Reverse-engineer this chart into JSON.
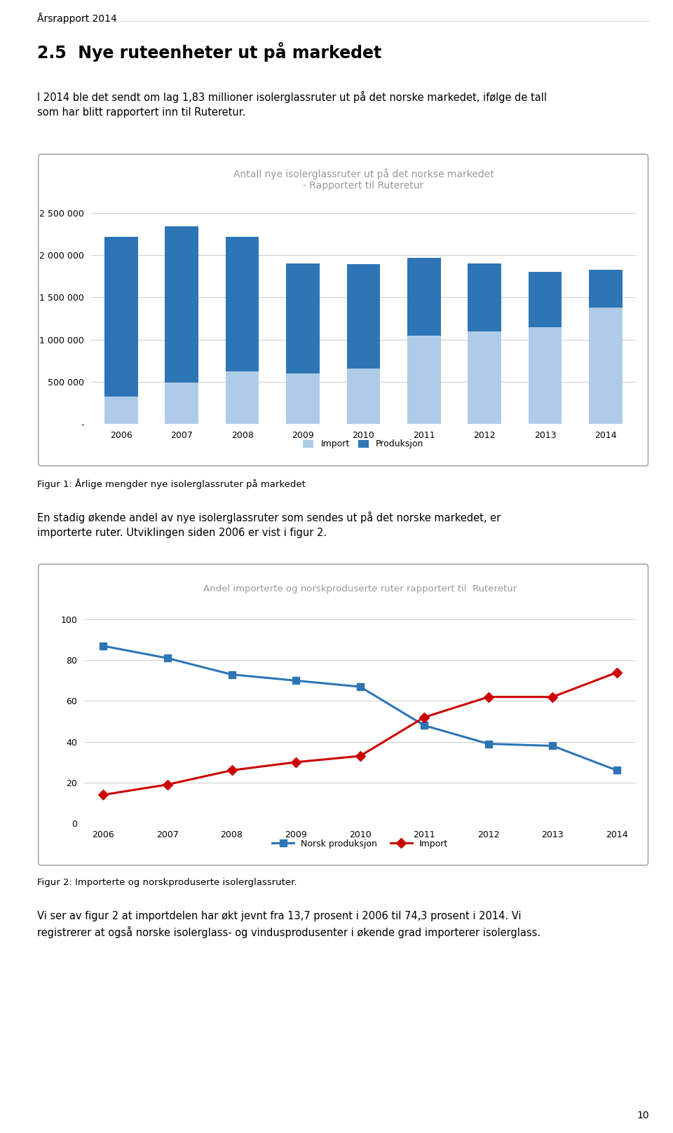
{
  "bar_years": [
    2006,
    2007,
    2008,
    2009,
    2010,
    2011,
    2012,
    2013,
    2014
  ],
  "import_vals": [
    320000,
    490000,
    620000,
    600000,
    660000,
    1050000,
    1100000,
    1150000,
    1380000
  ],
  "produksjon_vals": [
    1900000,
    1850000,
    1600000,
    1300000,
    1230000,
    920000,
    800000,
    650000,
    450000
  ],
  "bar_title_line1": "Antall nye isolerglassruter ut på det norkse markedet",
  "bar_title_line2": "- Rapportert til Ruteretur",
  "bar_yticks": [
    0,
    500000,
    1000000,
    1500000,
    2000000,
    2500000
  ],
  "bar_ytick_labels": [
    "-",
    "500 000",
    "1 000 000",
    "1 500 000",
    "2 000 000",
    "2 500 000"
  ],
  "bar_ylim": 2700000,
  "import_color": "#AECCE8",
  "produksjon_color": "#2E75B6",
  "legend1_import": "Import",
  "legend1_produksjon": "Produksjon",
  "line_years": [
    2006,
    2007,
    2008,
    2009,
    2010,
    2011,
    2012,
    2013,
    2014
  ],
  "norsk_vals": [
    87,
    81,
    73,
    70,
    67,
    48,
    39,
    38,
    26
  ],
  "import_pct_vals": [
    14,
    19,
    26,
    30,
    33,
    52,
    62,
    62,
    74
  ],
  "line_title": "Andel importerte og norskproduserte ruter rapportert til  Ruteretur",
  "line_yticks": [
    0,
    20,
    40,
    60,
    80,
    100
  ],
  "line_ylim": 110,
  "norsk_color": "#2E75B6",
  "import_line_color": "#CC0000",
  "legend2_norsk": "Norsk produksjon",
  "legend2_import": "Import",
  "header_text": "Årsrapport 2014",
  "section_title": "2.5  Nye ruteenheter ut på markedet",
  "para1": "I 2014 ble det sendt om lag 1,83 millioner isolerglassruter ut på det norske markedet, ifølge de tall\nsom har blitt rapportert inn til Ruteretur.",
  "fig1_caption": "Figur 1: Årlige mengder nye isolerglassruter på markedet",
  "para2": "En stadig økende andel av nye isolerglassruter som sendes ut på det norske markedet, er\nimporterte ruter. Utviklingen siden 2006 er vist i figur 2.",
  "fig2_caption": "Figur 2: Importerte og norskproduserte isolerglassruter.",
  "para3": "Vi ser av figur 2 at importdelen har økt jevnt fra 13,7 prosent i 2006 til 74,3 prosent i 2014. Vi\nregistrerer at også norske isolerglass- og vindusprodusenter i økende grad importerer isolerglass.",
  "page_number": "10",
  "bg_color": "#FFFFFF",
  "grid_color": "#CCCCCC",
  "border_color": "#AAAAAA",
  "title_color": "#999999",
  "text_color": "#000000",
  "header_line_color": "#DDDDDD"
}
